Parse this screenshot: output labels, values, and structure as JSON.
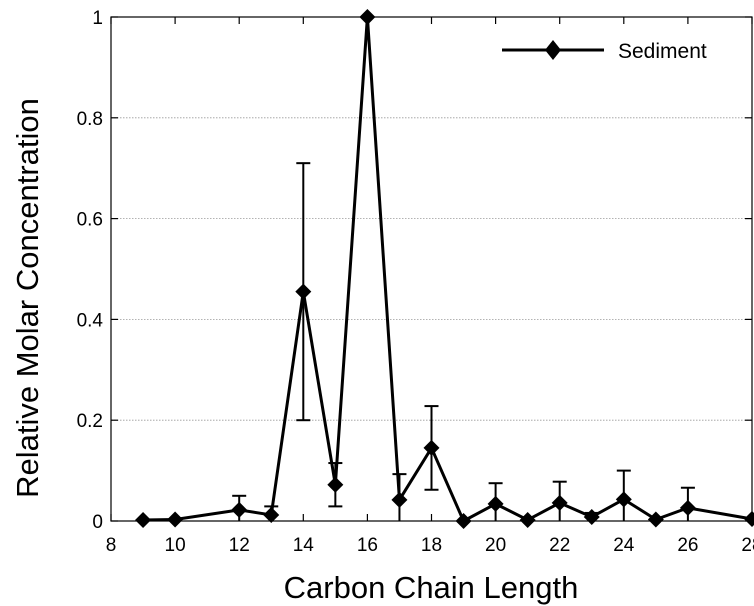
{
  "chart_data": {
    "type": "line",
    "title": "",
    "xlabel": "Carbon Chain Length",
    "ylabel": "Relative Molar Concentration",
    "xlim": [
      8,
      28
    ],
    "ylim": [
      0,
      1
    ],
    "xticks": [
      8,
      10,
      12,
      14,
      16,
      18,
      20,
      22,
      24,
      26,
      28
    ],
    "yticks": [
      0,
      0.2,
      0.4,
      0.6,
      0.8,
      1
    ],
    "ytick_labels": [
      "0",
      "0.2",
      "0.4",
      "0.6",
      "0.8",
      "1"
    ],
    "grid": "horizontal dotted",
    "legend": {
      "position": "top-right",
      "entries": [
        "Sediment"
      ]
    },
    "series": [
      {
        "name": "Sediment",
        "color": "#000000",
        "marker": "diamond",
        "points": [
          {
            "x": 9,
            "y": 0.002
          },
          {
            "x": 10,
            "y": 0.003
          },
          {
            "x": 12,
            "y": 0.022,
            "err": 0.028
          },
          {
            "x": 13,
            "y": 0.012,
            "err": 0.017
          },
          {
            "x": 14,
            "y": 0.455,
            "err": 0.255
          },
          {
            "x": 15,
            "y": 0.072,
            "err": 0.043
          },
          {
            "x": 16,
            "y": 1.0
          },
          {
            "x": 17,
            "y": 0.042,
            "err": 0.051
          },
          {
            "x": 18,
            "y": 0.145,
            "err": 0.083
          },
          {
            "x": 19,
            "y": 0.0
          },
          {
            "x": 20,
            "y": 0.034,
            "err": 0.041
          },
          {
            "x": 21,
            "y": 0.002
          },
          {
            "x": 22,
            "y": 0.036,
            "err": 0.042
          },
          {
            "x": 23,
            "y": 0.008,
            "err": 0.008
          },
          {
            "x": 24,
            "y": 0.043,
            "err": 0.057
          },
          {
            "x": 25,
            "y": 0.003
          },
          {
            "x": 26,
            "y": 0.026,
            "err": 0.04
          },
          {
            "x": 28,
            "y": 0.004
          }
        ]
      }
    ]
  }
}
